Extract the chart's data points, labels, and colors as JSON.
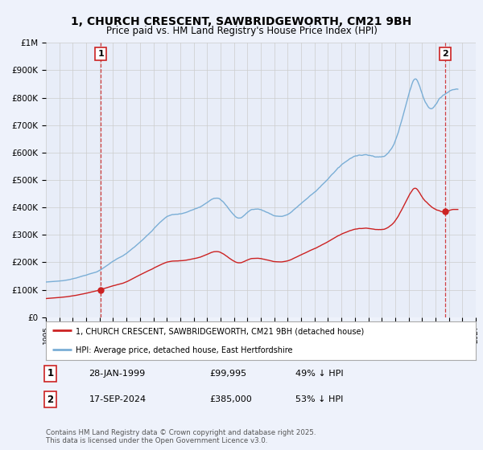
{
  "title": "1, CHURCH CRESCENT, SAWBRIDGEWORTH, CM21 9BH",
  "subtitle": "Price paid vs. HM Land Registry's House Price Index (HPI)",
  "title_fontsize": 10,
  "subtitle_fontsize": 8.5,
  "ylabel_ticks": [
    "£0",
    "£100K",
    "£200K",
    "£300K",
    "£400K",
    "£500K",
    "£600K",
    "£700K",
    "£800K",
    "£900K",
    "£1M"
  ],
  "ytick_vals": [
    0,
    100000,
    200000,
    300000,
    400000,
    500000,
    600000,
    700000,
    800000,
    900000,
    1000000
  ],
  "ylim": [
    0,
    1000000
  ],
  "xlim_start": 1995.0,
  "xlim_end": 2027.0,
  "grid_color": "#cccccc",
  "background_color": "#eef2fb",
  "plot_bg_color": "#e8edf8",
  "hpi_color": "#7aaed6",
  "price_color": "#cc2222",
  "dashed_vline_color": "#cc2222",
  "legend_label_price": "1, CHURCH CRESCENT, SAWBRIDGEWORTH, CM21 9BH (detached house)",
  "legend_label_hpi": "HPI: Average price, detached house, East Hertfordshire",
  "annotation1_label": "1",
  "annotation1_date": "28-JAN-1999",
  "annotation1_price": "£99,995",
  "annotation1_hpi": "49% ↓ HPI",
  "annotation1_year": 1999.08,
  "annotation1_price_val": 99995,
  "annotation2_label": "2",
  "annotation2_date": "17-SEP-2024",
  "annotation2_price": "£385,000",
  "annotation2_hpi": "53% ↓ HPI",
  "annotation2_year": 2024.71,
  "annotation2_price_val": 385000,
  "footnote": "Contains HM Land Registry data © Crown copyright and database right 2025.\nThis data is licensed under the Open Government Licence v3.0."
}
